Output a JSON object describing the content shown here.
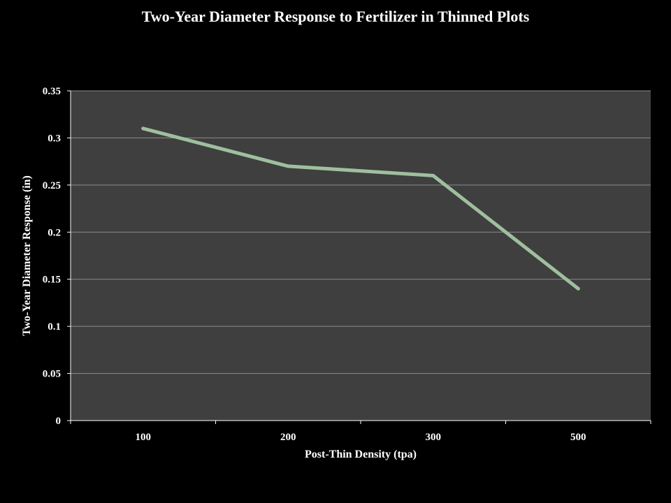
{
  "chart_data": {
    "type": "line",
    "title": "Two-Year Diameter Response to Fertilizer in Thinned Plots",
    "xlabel": "Post-Thin Density (tpa)",
    "ylabel": "Two-Year Diameter Response (in)",
    "categories": [
      "100",
      "200",
      "300",
      "500"
    ],
    "series": [
      {
        "values": [
          0.31,
          0.27,
          0.26,
          0.14
        ]
      }
    ],
    "ylim": [
      0,
      0.35
    ],
    "yticks": [
      0,
      0.05,
      0.1,
      0.15,
      0.2,
      0.25,
      0.3,
      0.35
    ],
    "ytick_labels": [
      "0",
      "0.05",
      "0.1",
      "0.15",
      "0.2",
      "0.25",
      "0.3",
      "0.35"
    ],
    "grid": "horizontal",
    "legend": "none",
    "colors": {
      "background": "#000000",
      "plot_area": "#3f3f3f",
      "gridline": "#8c8c8c",
      "axis": "#ffffff",
      "line": "#9fbf9f",
      "text": "#ffffff"
    }
  }
}
